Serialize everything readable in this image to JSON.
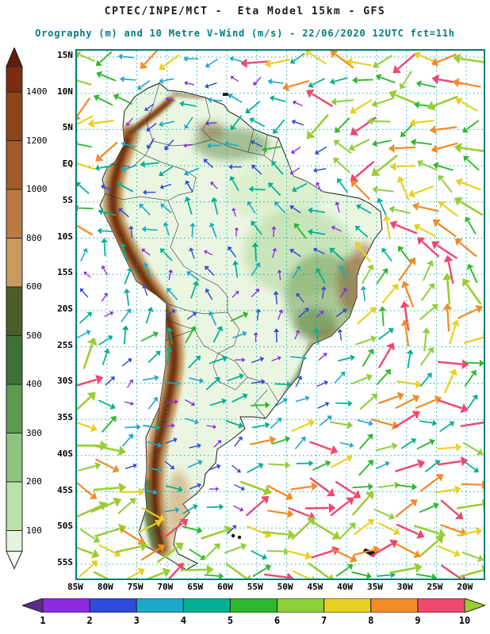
{
  "header": {
    "line1": "CPTEC/INPE/MCT -  Eta Model 15km - GFS",
    "line2": "Orography (m) and 10 Metre V-Wind (m/s) - 22/06/2020 12UTC fct=11h"
  },
  "map": {
    "lat_labels": [
      "15N",
      "10N",
      "5N",
      "EQ",
      "5S",
      "10S",
      "15S",
      "20S",
      "25S",
      "30S",
      "35S",
      "40S",
      "45S",
      "50S",
      "55S"
    ],
    "lon_labels": [
      "85W",
      "80W",
      "75W",
      "70W",
      "65W",
      "60W",
      "55W",
      "50W",
      "45W",
      "40W",
      "35W",
      "30W",
      "25W",
      "20W"
    ],
    "grid_color": "#00a8a8",
    "border_color": "#007d7d",
    "land_color": "#eaf6e2",
    "coastline_color": "#1a1a1a"
  },
  "orography_colorbar": {
    "title": "Orography (m)",
    "labels": [
      "1400",
      "1200",
      "1000",
      "800",
      "600",
      "500",
      "400",
      "300",
      "200",
      "100"
    ],
    "top_arrow_color": "#601f0a",
    "segment_colors": [
      "#7a2d12",
      "#8c4418",
      "#a05a2c",
      "#b97a45",
      "#c89a60",
      "#4a5e2a",
      "#3e7038",
      "#5c9a4e",
      "#8cc47e",
      "#b8e0a8",
      "#e4f4dc"
    ],
    "bottom_arrow_color": "#f7fcf3"
  },
  "wind_colorbar": {
    "title": "10 Metre V-Wind (m/s)",
    "labels": [
      "1",
      "2",
      "3",
      "4",
      "5",
      "6",
      "7",
      "8",
      "9",
      "10"
    ],
    "left_arrow_color": "#5b2c87",
    "segment_colors": [
      "#8a2be2",
      "#2f4bd9",
      "#1ca9c9",
      "#00b093",
      "#2eb82e",
      "#8fcf3a",
      "#e8d020",
      "#f28c28",
      "#ef476f"
    ],
    "right_arrow_color": "#9acd32"
  },
  "wind_field": {
    "cols": 19,
    "rows": 25,
    "step_x": 27,
    "step_y": 27
  },
  "chart_data": [
    {
      "type": "heatmap",
      "title": "Orography (m)",
      "legend_position": "left",
      "levels": [
        100,
        200,
        300,
        400,
        500,
        600,
        800,
        1000,
        1200,
        1400
      ]
    },
    {
      "type": "heatmap",
      "title": "10 Metre V-Wind (m/s)",
      "legend_position": "bottom",
      "levels": [
        1,
        2,
        3,
        4,
        5,
        6,
        7,
        8,
        9,
        10
      ]
    }
  ]
}
